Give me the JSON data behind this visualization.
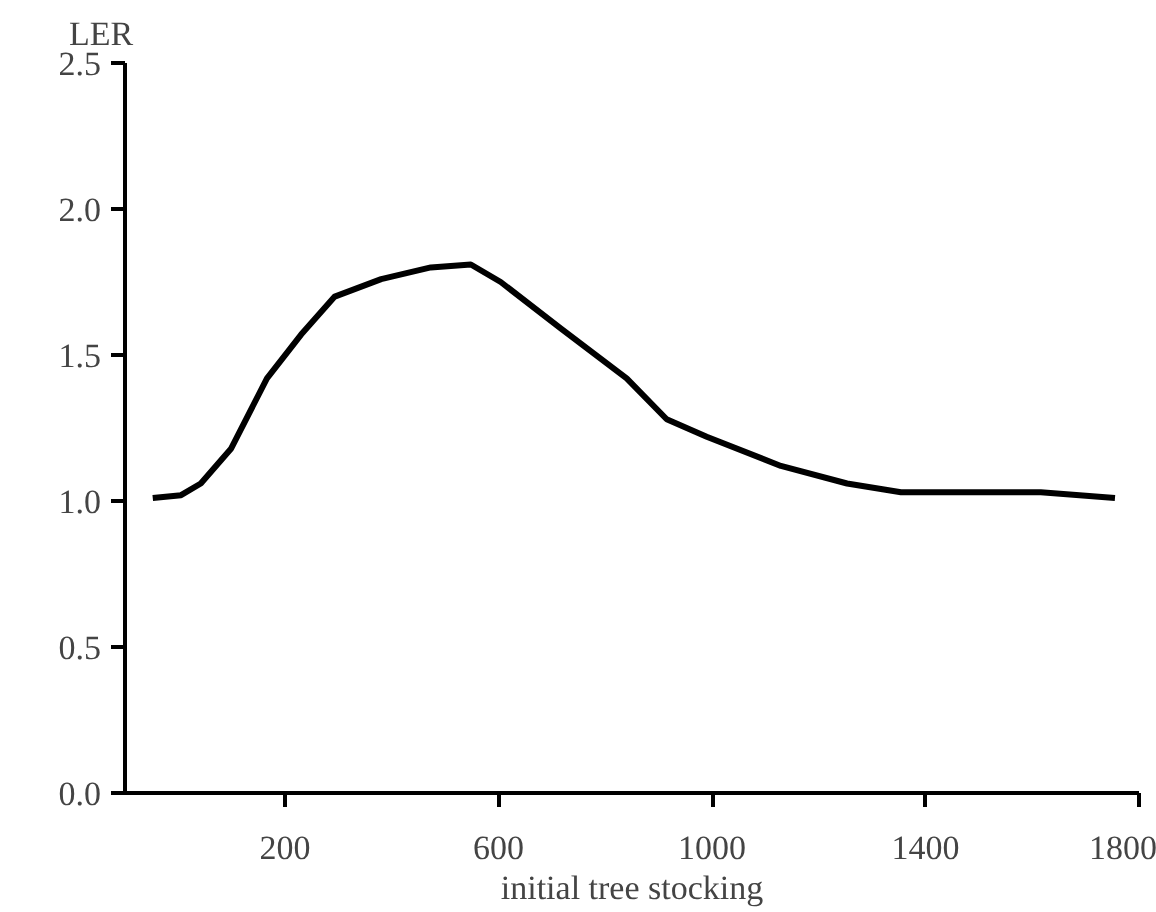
{
  "chart_data": {
    "type": "line",
    "ylabel": "LER",
    "xlabel": "initial tree stocking",
    "x": [
      -48,
      5,
      42,
      99,
      166,
      230,
      293,
      380,
      473,
      548,
      604,
      717,
      840,
      915,
      990,
      1129,
      1253,
      1354,
      1616,
      1755
    ],
    "series": [
      {
        "color": "#000000",
        "values": [
          1.01,
          1.02,
          1.06,
          1.18,
          1.42,
          1.57,
          1.7,
          1.76,
          1.8,
          1.81,
          1.75,
          1.59,
          1.42,
          1.28,
          1.22,
          1.12,
          1.06,
          1.03,
          1.03,
          1.01
        ]
      }
    ],
    "xlim": [
      -100,
      1800
    ],
    "xticks": [
      200,
      600,
      1000,
      1400,
      1800
    ],
    "ylim": [
      0,
      2.5
    ],
    "yticks": [
      {
        "value": 0,
        "label": "0.0"
      },
      {
        "value": 0.5,
        "label": "0.5"
      },
      {
        "value": 1,
        "label": "1.0"
      },
      {
        "value": 1.5,
        "label": "1.5"
      },
      {
        "value": 2,
        "label": "2.0"
      },
      {
        "value": 2.5,
        "label": "2.5"
      }
    ],
    "grid": false,
    "marker": "none",
    "line_style": "solid"
  }
}
